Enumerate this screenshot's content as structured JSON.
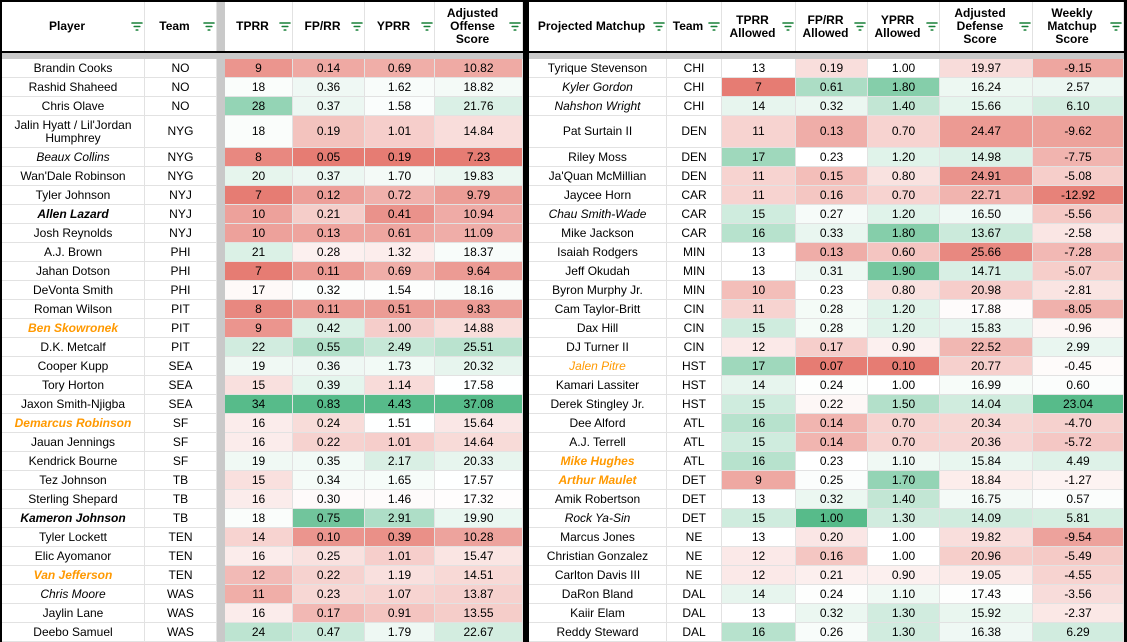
{
  "colors": {
    "scale_red": "#e67c73",
    "scale_green": "#57bb8a",
    "filter_icon_green": "#188038",
    "special_name_orange": "#ff9900",
    "freeze_divider_gray": "#c9c9c9",
    "border_black": "#000000"
  },
  "left_table": {
    "headers": [
      "Player",
      "Team",
      "TPRR",
      "FP/RR",
      "YPRR",
      "Adjusted\nOffense\nScore"
    ],
    "color_scales": {
      "tprr": {
        "min": 7,
        "mid": 17.5,
        "max": 34,
        "invert": false
      },
      "fprr": {
        "min": 0.05,
        "mid": 0.31,
        "max": 0.83,
        "invert": false
      },
      "yprr": {
        "min": 0.19,
        "mid": 1.5,
        "max": 4.43,
        "invert": false
      },
      "adj": {
        "min": 7.23,
        "mid": 17.5,
        "max": 37.08,
        "invert": false
      }
    },
    "tall_row_index": 3,
    "rows": [
      [
        "Brandin Cooks",
        "NO",
        "9",
        "0.14",
        "0.69",
        "10.82",
        "n"
      ],
      [
        "Rashid Shaheed",
        "NO",
        "18",
        "0.36",
        "1.62",
        "18.82",
        "n"
      ],
      [
        "Chris Olave",
        "NO",
        "28",
        "0.37",
        "1.58",
        "21.76",
        "n"
      ],
      [
        "Jalin Hyatt / Lil'Jordan Humphrey",
        "NYG",
        "18",
        "0.19",
        "1.01",
        "14.84",
        "n"
      ],
      [
        "Beaux Collins",
        "NYG",
        "8",
        "0.05",
        "0.19",
        "7.23",
        "i"
      ],
      [
        "Wan'Dale Robinson",
        "NYG",
        "20",
        "0.37",
        "1.70",
        "19.83",
        "n"
      ],
      [
        "Tyler Johnson",
        "NYJ",
        "7",
        "0.12",
        "0.72",
        "9.79",
        "n"
      ],
      [
        "Allen Lazard",
        "NYJ",
        "10",
        "0.21",
        "0.41",
        "10.94",
        "bi"
      ],
      [
        "Josh Reynolds",
        "NYJ",
        "10",
        "0.13",
        "0.61",
        "11.09",
        "n"
      ],
      [
        "A.J. Brown",
        "PHI",
        "21",
        "0.28",
        "1.32",
        "18.37",
        "n"
      ],
      [
        "Jahan Dotson",
        "PHI",
        "7",
        "0.11",
        "0.69",
        "9.64",
        "n"
      ],
      [
        "DeVonta Smith",
        "PHI",
        "17",
        "0.32",
        "1.54",
        "18.16",
        "n"
      ],
      [
        "Roman Wilson",
        "PIT",
        "8",
        "0.11",
        "0.51",
        "9.83",
        "n"
      ],
      [
        "Ben Skowronek",
        "PIT",
        "9",
        "0.42",
        "1.00",
        "14.88",
        "o"
      ],
      [
        "D.K. Metcalf",
        "PIT",
        "22",
        "0.55",
        "2.49",
        "25.51",
        "n"
      ],
      [
        "Cooper Kupp",
        "SEA",
        "19",
        "0.36",
        "1.73",
        "20.32",
        "n"
      ],
      [
        "Tory Horton",
        "SEA",
        "15",
        "0.39",
        "1.14",
        "17.58",
        "n"
      ],
      [
        "Jaxon Smith-Njigba",
        "SEA",
        "34",
        "0.83",
        "4.43",
        "37.08",
        "n"
      ],
      [
        "Demarcus Robinson",
        "SF",
        "16",
        "0.24",
        "1.51",
        "15.64",
        "o"
      ],
      [
        "Jauan Jennings",
        "SF",
        "16",
        "0.22",
        "1.01",
        "14.64",
        "n"
      ],
      [
        "Kendrick Bourne",
        "SF",
        "19",
        "0.35",
        "2.17",
        "20.33",
        "n"
      ],
      [
        "Tez Johnson",
        "TB",
        "15",
        "0.34",
        "1.65",
        "17.57",
        "n"
      ],
      [
        "Sterling Shepard",
        "TB",
        "16",
        "0.30",
        "1.46",
        "17.32",
        "n"
      ],
      [
        "Kameron Johnson",
        "TB",
        "18",
        "0.75",
        "2.91",
        "19.90",
        "bi"
      ],
      [
        "Tyler Lockett",
        "TEN",
        "14",
        "0.10",
        "0.39",
        "10.28",
        "n"
      ],
      [
        "Elic Ayomanor",
        "TEN",
        "16",
        "0.25",
        "1.01",
        "15.47",
        "n"
      ],
      [
        "Van Jefferson",
        "TEN",
        "12",
        "0.22",
        "1.19",
        "14.51",
        "o"
      ],
      [
        "Chris Moore",
        "WAS",
        "11",
        "0.23",
        "1.07",
        "13.87",
        "i"
      ],
      [
        "Jaylin Lane",
        "WAS",
        "16",
        "0.17",
        "0.91",
        "13.55",
        "n"
      ],
      [
        "Deebo Samuel",
        "WAS",
        "24",
        "0.47",
        "1.79",
        "22.67",
        "n"
      ]
    ]
  },
  "right_table": {
    "headers": [
      "Projected Matchup",
      "Team",
      "TPRR\nAllowed",
      "FP/RR\nAllowed",
      "YPRR\nAllowed",
      "Adjusted\nDefense\nScore",
      "Weekly\nMatchup\nScore"
    ],
    "color_scales": {
      "tprr": {
        "min": 7,
        "mid": 13,
        "max": 20,
        "invert": false
      },
      "fprr": {
        "min": 0.07,
        "mid": 0.23,
        "max": 1.0,
        "invert": false
      },
      "yprr": {
        "min": 0.1,
        "mid": 1.0,
        "max": 2.1,
        "invert": false
      },
      "adjdef": {
        "min": 5.0,
        "mid": 17.6,
        "max": 26.5,
        "invert": true
      },
      "weekly": {
        "min": -13.5,
        "mid": 0,
        "max": 23.04,
        "invert": false
      }
    },
    "tall_row_index": 3,
    "rows": [
      [
        "Tyrique Stevenson",
        "CHI",
        "13",
        "0.19",
        "1.00",
        "19.97",
        "-9.15",
        "n"
      ],
      [
        "Kyler Gordon",
        "CHI",
        "7",
        "0.61",
        "1.80",
        "16.24",
        "2.57",
        "i"
      ],
      [
        "Nahshon Wright",
        "CHI",
        "14",
        "0.32",
        "1.40",
        "15.66",
        "6.10",
        "i"
      ],
      [
        "Pat Surtain II",
        "DEN",
        "11",
        "0.13",
        "0.70",
        "24.47",
        "-9.62",
        "n"
      ],
      [
        "Riley Moss",
        "DEN",
        "17",
        "0.23",
        "1.20",
        "14.98",
        "-7.75",
        "n"
      ],
      [
        "Ja'Quan McMillian",
        "DEN",
        "11",
        "0.15",
        "0.80",
        "24.91",
        "-5.08",
        "n"
      ],
      [
        "Jaycee Horn",
        "CAR",
        "11",
        "0.16",
        "0.70",
        "22.71",
        "-12.92",
        "n"
      ],
      [
        "Chau Smith-Wade",
        "CAR",
        "15",
        "0.27",
        "1.20",
        "16.50",
        "-5.56",
        "i"
      ],
      [
        "Mike Jackson",
        "CAR",
        "16",
        "0.33",
        "1.80",
        "13.67",
        "-2.58",
        "n"
      ],
      [
        "Isaiah Rodgers",
        "MIN",
        "13",
        "0.13",
        "0.60",
        "25.66",
        "-7.28",
        "n"
      ],
      [
        "Jeff Okudah",
        "MIN",
        "13",
        "0.31",
        "1.90",
        "14.71",
        "-5.07",
        "n"
      ],
      [
        "Byron Murphy Jr.",
        "MIN",
        "10",
        "0.23",
        "0.80",
        "20.98",
        "-2.81",
        "n"
      ],
      [
        "Cam Taylor-Britt",
        "CIN",
        "11",
        "0.28",
        "1.20",
        "17.88",
        "-8.05",
        "n"
      ],
      [
        "Dax Hill",
        "CIN",
        "15",
        "0.28",
        "1.20",
        "15.83",
        "-0.96",
        "n"
      ],
      [
        "DJ Turner II",
        "CIN",
        "12",
        "0.17",
        "0.90",
        "22.52",
        "2.99",
        "n"
      ],
      [
        "Jalen Pitre",
        "HST",
        "17",
        "0.07",
        "0.10",
        "20.77",
        "-0.45",
        "oi"
      ],
      [
        "Kamari Lassiter",
        "HST",
        "14",
        "0.24",
        "1.00",
        "16.99",
        "0.60",
        "n"
      ],
      [
        "Derek Stingley Jr.",
        "HST",
        "15",
        "0.22",
        "1.50",
        "14.04",
        "23.04",
        "n"
      ],
      [
        "Dee Alford",
        "ATL",
        "16",
        "0.14",
        "0.70",
        "20.34",
        "-4.70",
        "n"
      ],
      [
        "A.J. Terrell",
        "ATL",
        "15",
        "0.14",
        "0.70",
        "20.36",
        "-5.72",
        "n"
      ],
      [
        "Mike Hughes",
        "ATL",
        "16",
        "0.23",
        "1.10",
        "15.84",
        "4.49",
        "o"
      ],
      [
        "Arthur Maulet",
        "DET",
        "9",
        "0.25",
        "1.70",
        "18.84",
        "-1.27",
        "o"
      ],
      [
        "Amik Robertson",
        "DET",
        "13",
        "0.32",
        "1.40",
        "16.75",
        "0.57",
        "n"
      ],
      [
        "Rock Ya-Sin",
        "DET",
        "15",
        "1.00",
        "1.30",
        "14.09",
        "5.81",
        "i"
      ],
      [
        "Marcus Jones",
        "NE",
        "13",
        "0.20",
        "1.00",
        "19.82",
        "-9.54",
        "n"
      ],
      [
        "Christian Gonzalez",
        "NE",
        "12",
        "0.16",
        "1.00",
        "20.96",
        "-5.49",
        "n"
      ],
      [
        "Carlton Davis III",
        "NE",
        "12",
        "0.21",
        "0.90",
        "19.05",
        "-4.55",
        "n"
      ],
      [
        "DaRon Bland",
        "DAL",
        "14",
        "0.24",
        "1.10",
        "17.43",
        "-3.56",
        "n"
      ],
      [
        "Kaiir Elam",
        "DAL",
        "13",
        "0.32",
        "1.30",
        "15.92",
        "-2.37",
        "n"
      ],
      [
        "Reddy Steward",
        "DAL",
        "16",
        "0.26",
        "1.30",
        "16.38",
        "6.29",
        "n"
      ]
    ]
  }
}
